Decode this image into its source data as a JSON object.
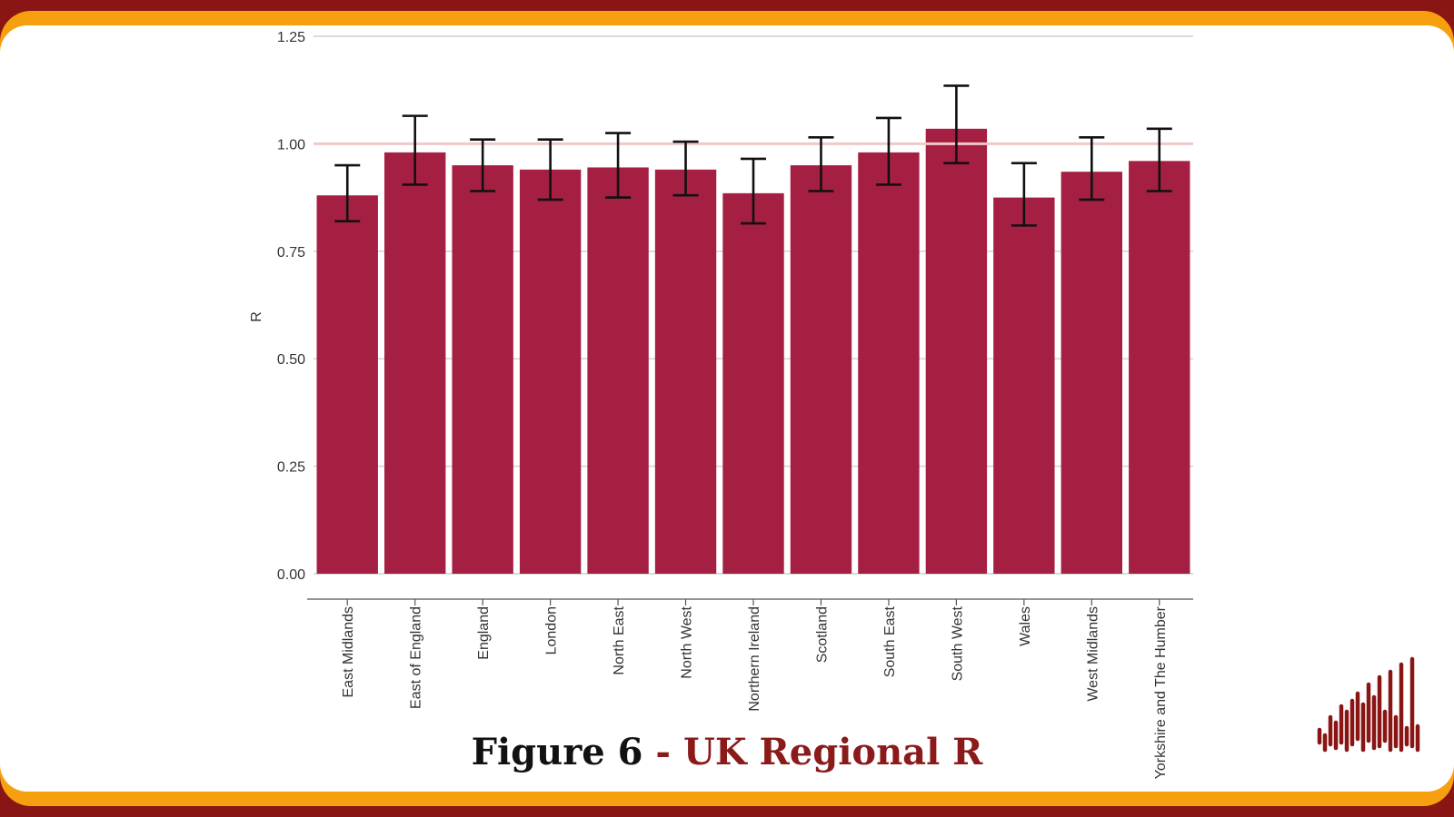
{
  "colors": {
    "frame_outer": "#8a1515",
    "frame_band": "#f7a00f",
    "bar": "#a51f43",
    "reference_line": "#f0c8c8",
    "caption_accent": "#8b1a1a",
    "logo": "#8a1515"
  },
  "caption": {
    "prefix": "Figure 6",
    "separator": " - ",
    "title": "UK Regional R"
  },
  "logo_icon": "bar-waveform-logo",
  "chart_data": {
    "type": "bar",
    "ylabel": "R",
    "ylim": [
      0,
      1.25
    ],
    "yticks": [
      "0.00",
      "0.25",
      "0.50",
      "0.75",
      "1.00",
      "1.25"
    ],
    "grid": true,
    "reference_line": 1.0,
    "categories": [
      "East Midlands",
      "East of England",
      "England",
      "London",
      "North East",
      "North West",
      "Northern Ireland",
      "Scotland",
      "South East",
      "South West",
      "Wales",
      "West Midlands",
      "Yorkshire and The Humber"
    ],
    "values": [
      0.88,
      0.98,
      0.95,
      0.94,
      0.945,
      0.94,
      0.885,
      0.95,
      0.98,
      1.035,
      0.875,
      0.935,
      0.96
    ],
    "error_low": [
      0.82,
      0.905,
      0.89,
      0.87,
      0.875,
      0.88,
      0.815,
      0.89,
      0.905,
      0.955,
      0.81,
      0.87,
      0.89
    ],
    "error_high": [
      0.95,
      1.065,
      1.01,
      1.01,
      1.025,
      1.005,
      0.965,
      1.015,
      1.06,
      1.135,
      0.955,
      1.015,
      1.035
    ]
  }
}
